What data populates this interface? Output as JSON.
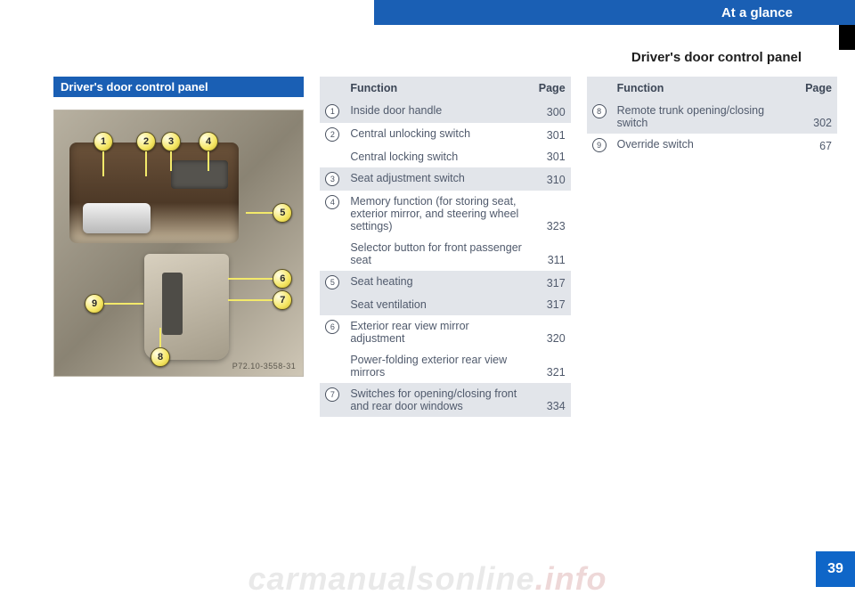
{
  "header": {
    "chapter": "At a glance"
  },
  "section_title": "Driver's door control panel",
  "left_heading": "Driver's door control panel",
  "image_ref": "P72.10-3558-31",
  "page_number": "39",
  "watermark": {
    "main": "carmanualsonline",
    "suffix": ".info"
  },
  "callouts": [
    "1",
    "2",
    "3",
    "4",
    "5",
    "6",
    "7",
    "8",
    "9"
  ],
  "table_header": {
    "function": "Function",
    "page": "Page"
  },
  "table1": [
    {
      "idx": "1",
      "rows": [
        {
          "label": "Inside door handle",
          "page": "300"
        }
      ],
      "shade": true
    },
    {
      "idx": "2",
      "rows": [
        {
          "label": "Central unlocking switch",
          "page": "301"
        },
        {
          "label": "Central locking switch",
          "page": "301"
        }
      ],
      "shade": false
    },
    {
      "idx": "3",
      "rows": [
        {
          "label": "Seat adjustment switch",
          "page": "310"
        }
      ],
      "shade": true
    },
    {
      "idx": "4",
      "rows": [
        {
          "label": "Memory function (for storing seat, exterior mirror, and steering wheel settings)",
          "page": "323"
        },
        {
          "label": "Selector button for front passenger seat",
          "page": "311"
        }
      ],
      "shade": false
    },
    {
      "idx": "5",
      "rows": [
        {
          "label": "Seat heating",
          "page": "317"
        },
        {
          "label": "Seat ventilation",
          "page": "317"
        }
      ],
      "shade": true
    },
    {
      "idx": "6",
      "rows": [
        {
          "label": "Exterior rear view mirror adjustment",
          "page": "320"
        },
        {
          "label": "Power-folding exterior rear view mirrors",
          "page": "321"
        }
      ],
      "shade": false
    },
    {
      "idx": "7",
      "rows": [
        {
          "label": "Switches for opening/closing front and rear door windows",
          "page": "334"
        }
      ],
      "shade": true
    }
  ],
  "table2": [
    {
      "idx": "8",
      "rows": [
        {
          "label": "Remote trunk opening/closing switch",
          "page": "302"
        }
      ],
      "shade": true
    },
    {
      "idx": "9",
      "rows": [
        {
          "label": "Override switch",
          "page": "67"
        }
      ],
      "shade": false
    }
  ]
}
